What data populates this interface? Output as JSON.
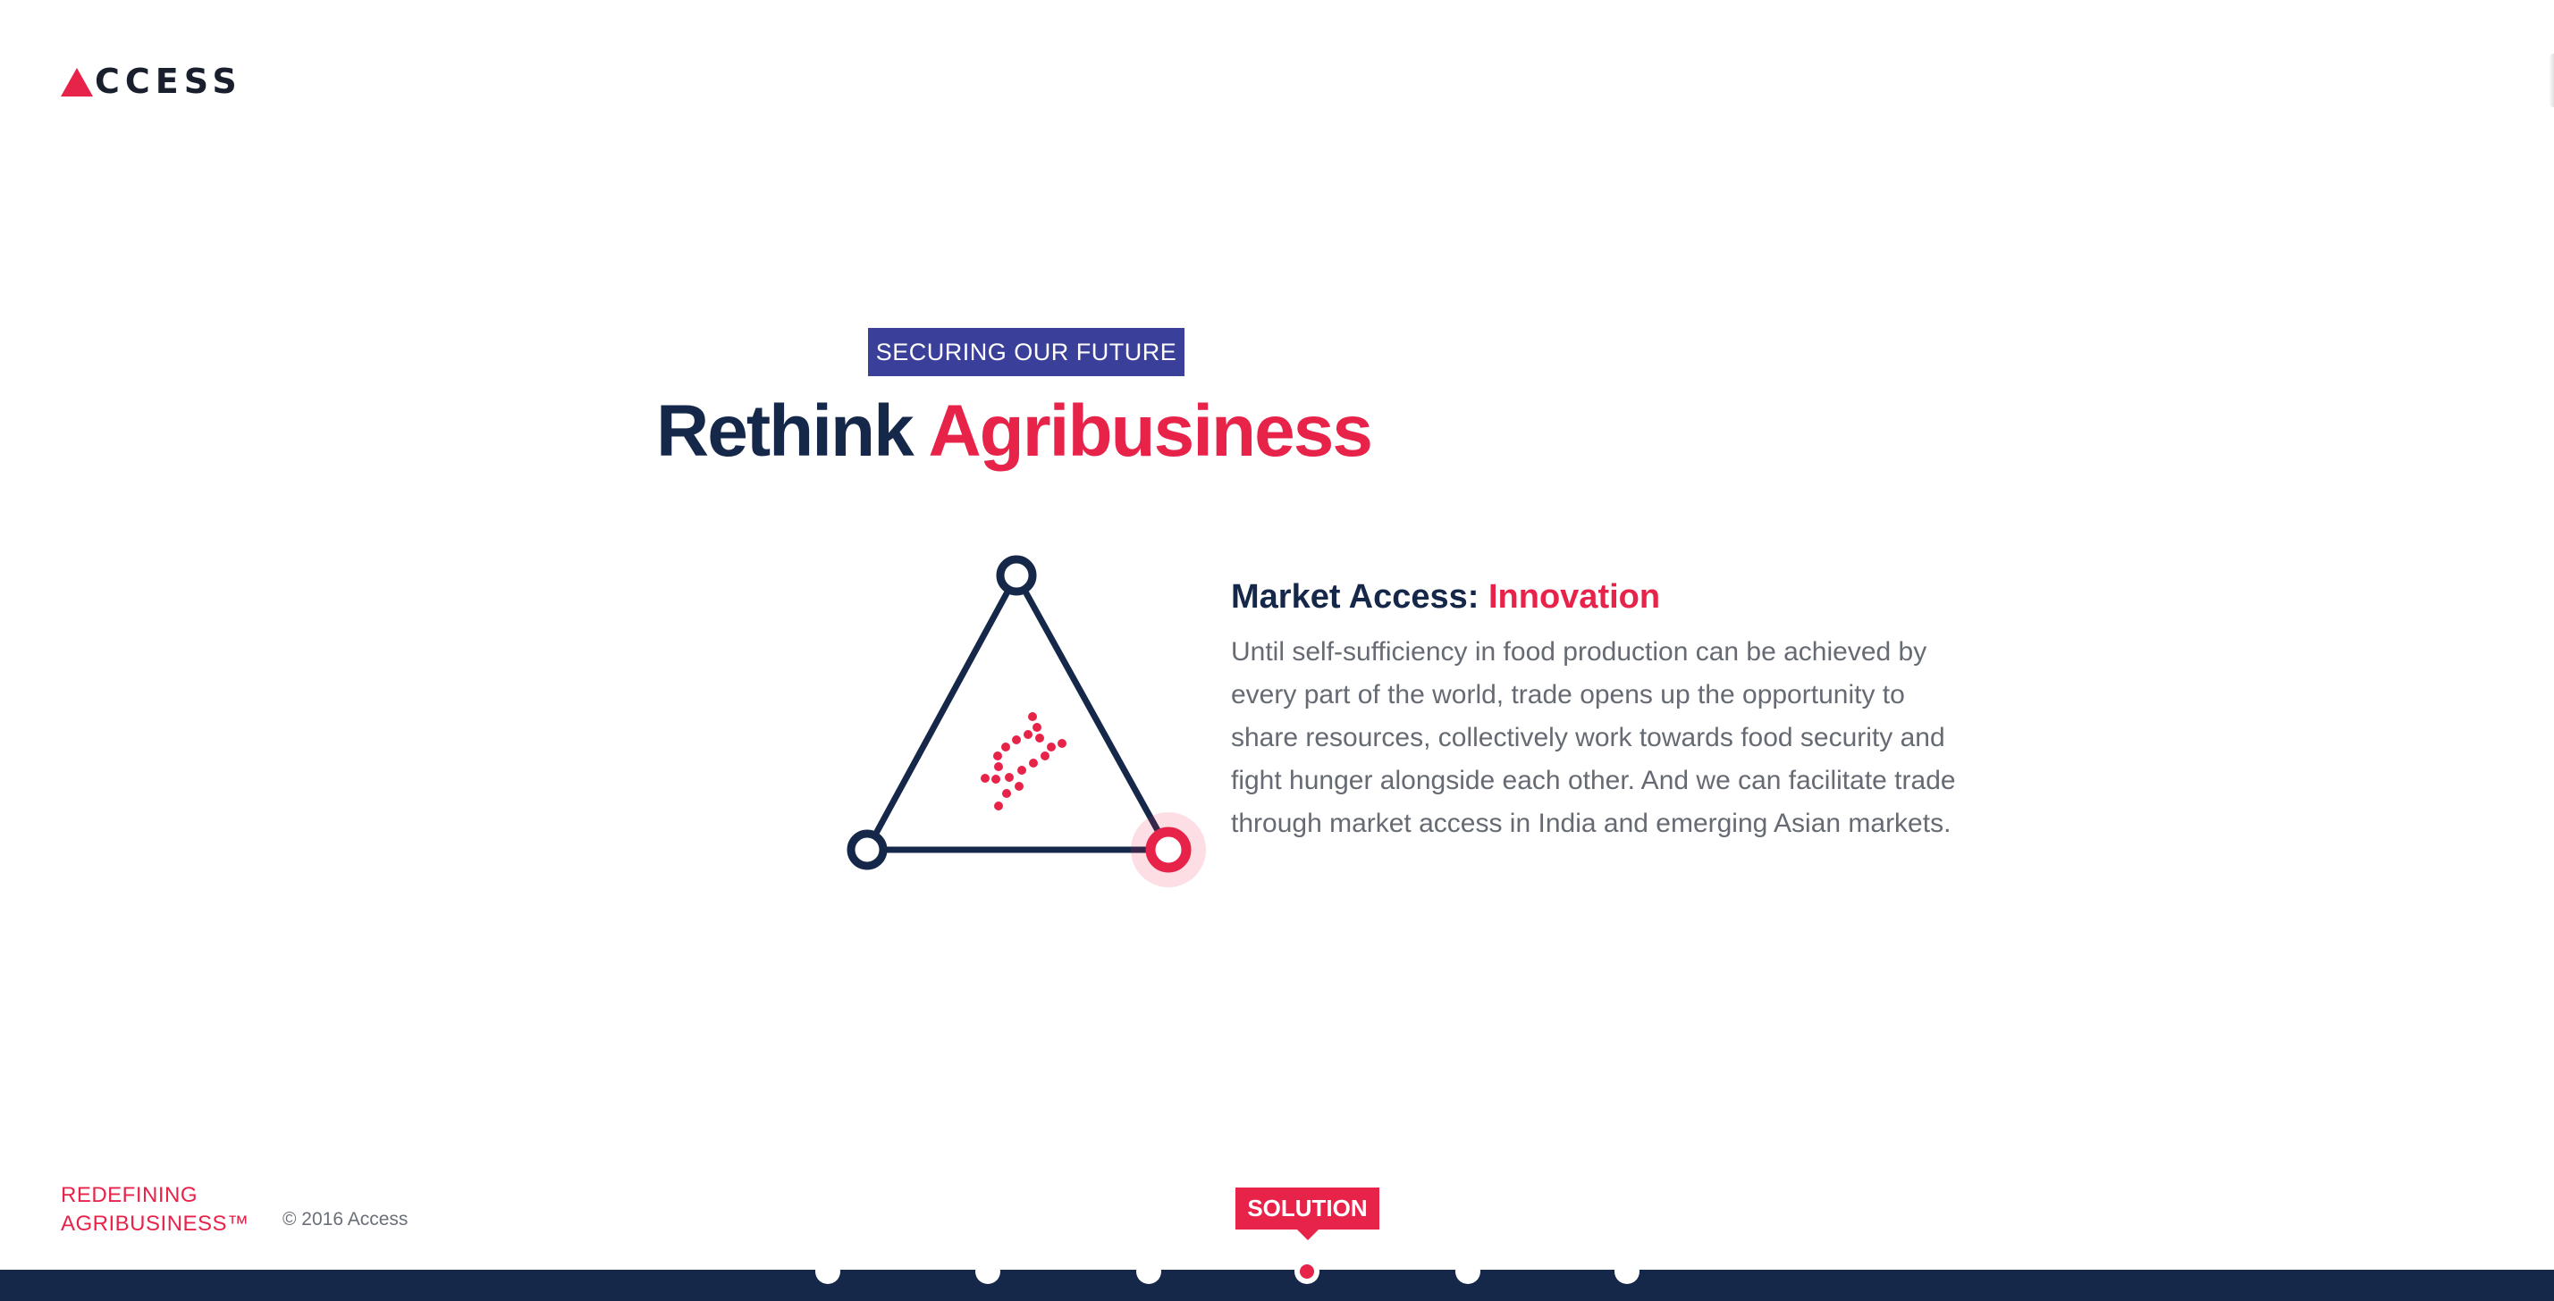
{
  "brand": {
    "logo_text": "CCESS",
    "primary_color": "#16284a",
    "accent_color": "#e8234a",
    "tag_color": "#3a3f9a"
  },
  "hero": {
    "tag": "SECURING OUR FUTURE",
    "headline_part1": "Rethink",
    "headline_part2": "Agribusiness"
  },
  "info": {
    "title_part1": "Market Access:",
    "title_part2": "Innovation",
    "body": "Until self-sufficiency in food production can be achieved by every part of the world, trade opens up the opportunity to share resources, collectively work towards food security and fight hunger alongside each other. And we can facilitate trade through market access in India and emerging Asian markets."
  },
  "footer": {
    "tagline_line1": "REDEFINING",
    "tagline_line2": "AGRIBUSINESS™",
    "copyright": "© 2016 Access"
  },
  "navigation": {
    "active_label": "SOLUTION",
    "dot_count": 6,
    "active_index": 3
  },
  "icons": {
    "triangle": "triangle-nodes-icon",
    "dna": "dna-icon"
  }
}
